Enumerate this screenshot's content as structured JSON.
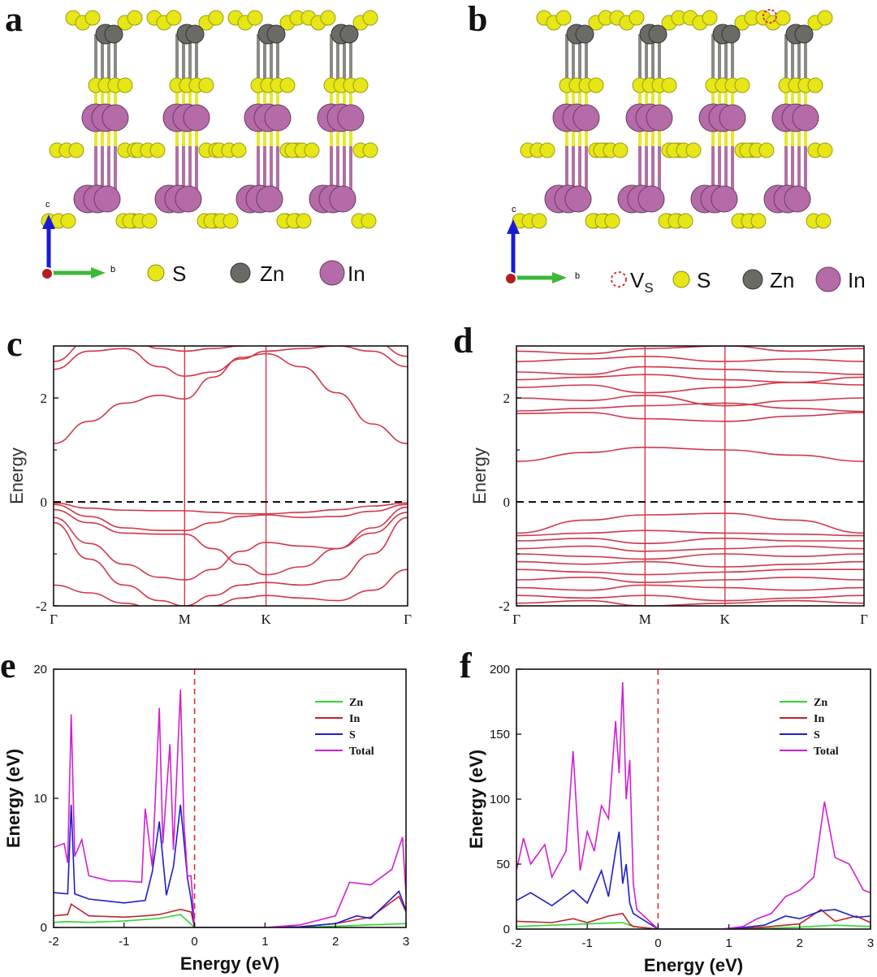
{
  "panels": {
    "a": {
      "letter": "a",
      "axes": {
        "c": "c",
        "b": "b"
      },
      "legend": [
        {
          "label": "S",
          "color": "#e6e619"
        },
        {
          "label": "Zn",
          "color": "#6b6b66"
        },
        {
          "label": "In",
          "color": "#b56ba8"
        }
      ]
    },
    "b": {
      "letter": "b",
      "axes": {
        "c": "c",
        "b": "b"
      },
      "legend": [
        {
          "label": "V",
          "sub": "S",
          "color": "#d93030"
        },
        {
          "label": "S",
          "color": "#e6e619"
        },
        {
          "label": "Zn",
          "color": "#6b6b66"
        },
        {
          "label": "In",
          "color": "#b56ba8"
        }
      ]
    },
    "c": {
      "letter": "c"
    },
    "d": {
      "letter": "d"
    },
    "e": {
      "letter": "e"
    },
    "f": {
      "letter": "f"
    }
  },
  "chart_data": [
    {
      "id": "c",
      "type": "line",
      "ylabel": "Energy",
      "ylim": [
        -2,
        3
      ],
      "yticks": [
        "2",
        "0",
        "-2"
      ],
      "kpoints": [
        "Γ",
        "M",
        "K",
        "Γ"
      ],
      "kpos": [
        0,
        0.37,
        0.6,
        1.0
      ],
      "fermi_level": 0,
      "line_color": "#d2384a",
      "series": [
        {
          "x": [
            0,
            0.1,
            0.2,
            0.3,
            0.37,
            0.45,
            0.53,
            0.6,
            0.7,
            0.8,
            0.9,
            1.0
          ],
          "y": [
            1.12,
            1.55,
            1.9,
            2.05,
            1.98,
            2.4,
            2.78,
            2.85,
            2.6,
            2.1,
            1.5,
            1.12
          ]
        },
        {
          "x": [
            0,
            0.1,
            0.2,
            0.3,
            0.37,
            0.45,
            0.53,
            0.6,
            0.7,
            0.8,
            0.9,
            1.0
          ],
          "y": [
            2.55,
            2.9,
            2.95,
            2.6,
            2.42,
            2.5,
            2.75,
            2.9,
            2.95,
            3.0,
            2.9,
            2.6
          ]
        },
        {
          "x": [
            0,
            0.1,
            0.2,
            0.3,
            0.37,
            0.45,
            0.53,
            0.6,
            0.7,
            0.8,
            0.9,
            1.0
          ],
          "y": [
            2.7,
            3.1,
            3.2,
            2.95,
            2.9,
            2.95,
            3.0,
            3.1,
            3.2,
            3.2,
            3.1,
            2.8
          ]
        },
        {
          "x": [
            0,
            0.1,
            0.2,
            0.3,
            0.37,
            0.45,
            0.53,
            0.6,
            0.7,
            0.8,
            0.9,
            1.0
          ],
          "y": [
            -0.02,
            -0.12,
            -0.16,
            -0.17,
            -0.17,
            -0.2,
            -0.23,
            -0.23,
            -0.2,
            -0.15,
            -0.08,
            -0.02
          ]
        },
        {
          "x": [
            0,
            0.1,
            0.2,
            0.3,
            0.37,
            0.45,
            0.53,
            0.6,
            0.7,
            0.8,
            0.9,
            1.0
          ],
          "y": [
            -0.05,
            -0.28,
            -0.5,
            -0.55,
            -0.55,
            -0.4,
            -0.28,
            -0.25,
            -0.3,
            -0.28,
            -0.18,
            -0.05
          ]
        },
        {
          "x": [
            0,
            0.1,
            0.2,
            0.3,
            0.37,
            0.45,
            0.53,
            0.6,
            0.7,
            0.8,
            0.9,
            1.0
          ],
          "y": [
            -0.15,
            -0.4,
            -0.6,
            -0.62,
            -0.62,
            -0.9,
            -1.2,
            -1.4,
            -1.25,
            -0.9,
            -0.5,
            -0.1
          ]
        },
        {
          "x": [
            0,
            0.1,
            0.2,
            0.3,
            0.37,
            0.45,
            0.53,
            0.6,
            0.7,
            0.8,
            0.9,
            1.0
          ],
          "y": [
            -0.3,
            -0.8,
            -1.2,
            -1.45,
            -1.5,
            -1.3,
            -0.95,
            -0.78,
            -0.85,
            -0.9,
            -0.6,
            -0.2
          ]
        },
        {
          "x": [
            0,
            0.1,
            0.2,
            0.3,
            0.37,
            0.45,
            0.53,
            0.6,
            0.7,
            0.8,
            0.9,
            1.0
          ],
          "y": [
            -0.4,
            -1.1,
            -1.6,
            -1.9,
            -2.0,
            -1.8,
            -1.6,
            -1.55,
            -1.6,
            -1.5,
            -1.0,
            -0.3
          ]
        },
        {
          "x": [
            0,
            0.1,
            0.2,
            0.3,
            0.37,
            0.45,
            0.53,
            0.6,
            0.7,
            0.8,
            0.9,
            1.0
          ],
          "y": [
            -1.6,
            -1.75,
            -1.95,
            -2.1,
            -2.1,
            -2.0,
            -1.85,
            -1.8,
            -1.85,
            -1.9,
            -1.7,
            -1.3
          ]
        }
      ]
    },
    {
      "id": "d",
      "type": "line",
      "ylabel": "Energy",
      "ylim": [
        -2,
        3
      ],
      "yticks": [
        "2",
        "0",
        "-2"
      ],
      "kpoints": [
        "Γ",
        "M",
        "K",
        "Γ"
      ],
      "kpos": [
        0,
        0.37,
        0.6,
        1.0
      ],
      "fermi_level": 0,
      "line_color": "#d2384a",
      "series": [
        {
          "x": [
            0,
            0.2,
            0.37,
            0.6,
            0.8,
            1.0
          ],
          "y": [
            0.78,
            0.95,
            1.05,
            1.0,
            0.9,
            0.78
          ]
        },
        {
          "x": [
            0,
            0.2,
            0.37,
            0.6,
            0.8,
            1.0
          ],
          "y": [
            1.7,
            1.72,
            1.6,
            1.55,
            1.65,
            1.72
          ]
        },
        {
          "x": [
            0,
            0.2,
            0.37,
            0.6,
            0.8,
            1.0
          ],
          "y": [
            1.75,
            1.8,
            1.85,
            1.9,
            1.8,
            1.74
          ]
        },
        {
          "x": [
            0,
            0.2,
            0.37,
            0.6,
            0.8,
            1.0
          ],
          "y": [
            2.0,
            1.95,
            2.05,
            1.85,
            1.95,
            2.0
          ]
        },
        {
          "x": [
            0,
            0.2,
            0.37,
            0.6,
            0.8,
            1.0
          ],
          "y": [
            2.2,
            2.25,
            2.1,
            2.2,
            2.3,
            2.25
          ]
        },
        {
          "x": [
            0,
            0.2,
            0.37,
            0.6,
            0.8,
            1.0
          ],
          "y": [
            2.35,
            2.4,
            2.45,
            2.35,
            2.3,
            2.4
          ]
        },
        {
          "x": [
            0,
            0.2,
            0.37,
            0.6,
            0.8,
            1.0
          ],
          "y": [
            2.5,
            2.45,
            2.6,
            2.55,
            2.5,
            2.45
          ]
        },
        {
          "x": [
            0,
            0.2,
            0.37,
            0.6,
            0.8,
            1.0
          ],
          "y": [
            2.7,
            2.75,
            2.8,
            2.7,
            2.75,
            2.7
          ]
        },
        {
          "x": [
            0,
            0.2,
            0.37,
            0.6,
            0.8,
            1.0
          ],
          "y": [
            2.9,
            2.85,
            2.95,
            3.0,
            2.9,
            2.95
          ]
        },
        {
          "x": [
            0,
            0.2,
            0.37,
            0.6,
            0.8,
            1.0
          ],
          "y": [
            -0.6,
            -0.35,
            -0.25,
            -0.22,
            -0.35,
            -0.6
          ]
        },
        {
          "x": [
            0,
            0.2,
            0.37,
            0.6,
            0.8,
            1.0
          ],
          "y": [
            -0.65,
            -0.6,
            -0.55,
            -0.6,
            -0.62,
            -0.65
          ]
        },
        {
          "x": [
            0,
            0.2,
            0.37,
            0.6,
            0.8,
            1.0
          ],
          "y": [
            -0.75,
            -0.7,
            -0.8,
            -0.7,
            -0.75,
            -0.75
          ]
        },
        {
          "x": [
            0,
            0.2,
            0.37,
            0.6,
            0.8,
            1.0
          ],
          "y": [
            -0.9,
            -0.85,
            -0.95,
            -0.9,
            -0.85,
            -0.9
          ]
        },
        {
          "x": [
            0,
            0.2,
            0.37,
            0.6,
            0.8,
            1.0
          ],
          "y": [
            -1.0,
            -1.05,
            -1.1,
            -1.0,
            -1.05,
            -1.0
          ]
        },
        {
          "x": [
            0,
            0.2,
            0.37,
            0.6,
            0.8,
            1.0
          ],
          "y": [
            -1.15,
            -1.2,
            -1.15,
            -1.25,
            -1.2,
            -1.15
          ]
        },
        {
          "x": [
            0,
            0.2,
            0.37,
            0.6,
            0.8,
            1.0
          ],
          "y": [
            -1.3,
            -1.35,
            -1.4,
            -1.35,
            -1.3,
            -1.3
          ]
        },
        {
          "x": [
            0,
            0.2,
            0.37,
            0.6,
            0.8,
            1.0
          ],
          "y": [
            -1.5,
            -1.45,
            -1.55,
            -1.5,
            -1.45,
            -1.5
          ]
        },
        {
          "x": [
            0,
            0.2,
            0.37,
            0.6,
            0.8,
            1.0
          ],
          "y": [
            -1.65,
            -1.7,
            -1.6,
            -1.65,
            -1.7,
            -1.65
          ]
        },
        {
          "x": [
            0,
            0.2,
            0.37,
            0.6,
            0.8,
            1.0
          ],
          "y": [
            -1.8,
            -1.85,
            -1.8,
            -1.9,
            -1.85,
            -1.8
          ]
        },
        {
          "x": [
            0,
            0.2,
            0.37,
            0.6,
            0.8,
            1.0
          ],
          "y": [
            -1.95,
            -1.9,
            -2.0,
            -1.95,
            -1.9,
            -1.95
          ]
        }
      ]
    },
    {
      "id": "e",
      "type": "line",
      "xlabel": "Energy (eV)",
      "ylabel": "Energy (eV)",
      "xlim": [
        -2,
        3
      ],
      "ylim": [
        0,
        20
      ],
      "xticks": [
        "-2",
        "-1",
        "0",
        "1",
        "2",
        "3"
      ],
      "yticks": [
        "0",
        "10",
        "20"
      ],
      "fermi_level": 0,
      "legend": "top-right",
      "series": [
        {
          "name": "Zn",
          "color": "#2fd62f",
          "x": [
            -2,
            -1.8,
            -1.5,
            -1,
            -0.5,
            -0.2,
            0,
            0.5,
            1,
            1.5,
            2,
            2.5,
            3
          ],
          "y": [
            0.4,
            0.45,
            0.4,
            0.5,
            0.7,
            1.0,
            0,
            0,
            0,
            0,
            0.1,
            0.2,
            0.3
          ]
        },
        {
          "name": "In",
          "color": "#c0242c",
          "x": [
            -2,
            -1.8,
            -1.75,
            -1.5,
            -1,
            -0.7,
            -0.5,
            -0.2,
            -0.05,
            0,
            0.5,
            1,
            1.5,
            2,
            2.5,
            2.9,
            3
          ],
          "y": [
            0.9,
            1.0,
            1.8,
            0.9,
            0.8,
            0.9,
            1.0,
            1.4,
            1.2,
            0,
            0,
            0,
            0.05,
            0.3,
            0.8,
            2.4,
            1.2
          ]
        },
        {
          "name": "S",
          "color": "#1d1dcc",
          "x": [
            -2,
            -1.8,
            -1.75,
            -1.7,
            -1.5,
            -1,
            -0.7,
            -0.6,
            -0.5,
            -0.4,
            -0.3,
            -0.2,
            -0.1,
            -0.05,
            0,
            0.5,
            1,
            1.5,
            2,
            2.3,
            2.5,
            2.9,
            3
          ],
          "y": [
            2.7,
            2.6,
            9.5,
            2.6,
            2.2,
            1.9,
            2.1,
            4.3,
            8.2,
            2.5,
            4.7,
            9.5,
            3.8,
            2.2,
            0,
            0,
            0,
            0.05,
            0.3,
            0.9,
            0.7,
            2.8,
            1.3
          ]
        },
        {
          "name": "Total",
          "color": "#d21fd2",
          "x": [
            -2,
            -1.85,
            -1.8,
            -1.75,
            -1.7,
            -1.6,
            -1.5,
            -1.2,
            -1.0,
            -0.75,
            -0.7,
            -0.6,
            -0.5,
            -0.45,
            -0.35,
            -0.3,
            -0.2,
            -0.15,
            -0.1,
            -0.05,
            0,
            0.5,
            1,
            1.5,
            2,
            2.2,
            2.5,
            2.8,
            2.95,
            3
          ],
          "y": [
            6.2,
            6.5,
            5.0,
            16.5,
            5.5,
            6.8,
            4.0,
            3.6,
            3.6,
            3.5,
            9.2,
            4.7,
            17.0,
            6.5,
            14.2,
            6.0,
            18.4,
            8.0,
            4.0,
            4.0,
            0,
            0,
            0,
            0.2,
            0.9,
            3.5,
            3.3,
            4.5,
            7.0,
            2.5
          ]
        }
      ]
    },
    {
      "id": "f",
      "type": "line",
      "xlabel": "Energy (eV)",
      "ylabel": "Energy (eV)",
      "xlim": [
        -2,
        3
      ],
      "ylim": [
        0,
        200
      ],
      "xticks": [
        "-2",
        "-1",
        "0",
        "1",
        "2",
        "3"
      ],
      "yticks": [
        "0",
        "50",
        "100",
        "150",
        "200"
      ],
      "fermi_level": 0,
      "legend": "top-right",
      "series": [
        {
          "name": "Zn",
          "color": "#2fd62f",
          "x": [
            -2,
            -1.5,
            -1,
            -0.5,
            -0.35,
            0,
            0.5,
            1,
            1.5,
            2,
            2.5,
            3
          ],
          "y": [
            2,
            3,
            4,
            5,
            2,
            0,
            0,
            0,
            0.5,
            1.5,
            3,
            2
          ]
        },
        {
          "name": "In",
          "color": "#c0242c",
          "x": [
            -2,
            -1.5,
            -1.2,
            -1,
            -0.7,
            -0.5,
            -0.4,
            -0.35,
            0,
            0.5,
            1,
            1.5,
            2,
            2.3,
            2.5,
            2.8,
            3
          ],
          "y": [
            6,
            5,
            8,
            5,
            10,
            12,
            4,
            2,
            0,
            0,
            0,
            1.5,
            4,
            15,
            6,
            10,
            5
          ]
        },
        {
          "name": "S",
          "color": "#1d1dcc",
          "x": [
            -2,
            -1.8,
            -1.5,
            -1.2,
            -1.0,
            -0.8,
            -0.7,
            -0.6,
            -0.55,
            -0.5,
            -0.45,
            -0.4,
            -0.35,
            0,
            0.5,
            1,
            1.5,
            1.8,
            2.0,
            2.3,
            2.5,
            2.8,
            3
          ],
          "y": [
            22,
            28,
            18,
            30,
            20,
            45,
            25,
            60,
            75,
            35,
            50,
            20,
            12,
            0,
            0,
            0,
            3,
            10,
            8,
            14,
            15,
            9,
            10
          ]
        },
        {
          "name": "Total",
          "color": "#d21fd2",
          "x": [
            -2,
            -1.9,
            -1.8,
            -1.6,
            -1.5,
            -1.3,
            -1.2,
            -1.1,
            -1.0,
            -0.9,
            -0.8,
            -0.7,
            -0.6,
            -0.55,
            -0.5,
            -0.45,
            -0.4,
            -0.35,
            -0.3,
            0,
            0.5,
            0.9,
            1.2,
            1.4,
            1.6,
            1.8,
            2.0,
            2.2,
            2.35,
            2.5,
            2.7,
            2.9,
            3
          ],
          "y": [
            45,
            70,
            50,
            65,
            40,
            60,
            137,
            45,
            75,
            60,
            95,
            85,
            160,
            120,
            190,
            100,
            130,
            35,
            15,
            0,
            0,
            0,
            2,
            8,
            12,
            25,
            30,
            40,
            98,
            55,
            50,
            30,
            28
          ]
        }
      ]
    }
  ]
}
